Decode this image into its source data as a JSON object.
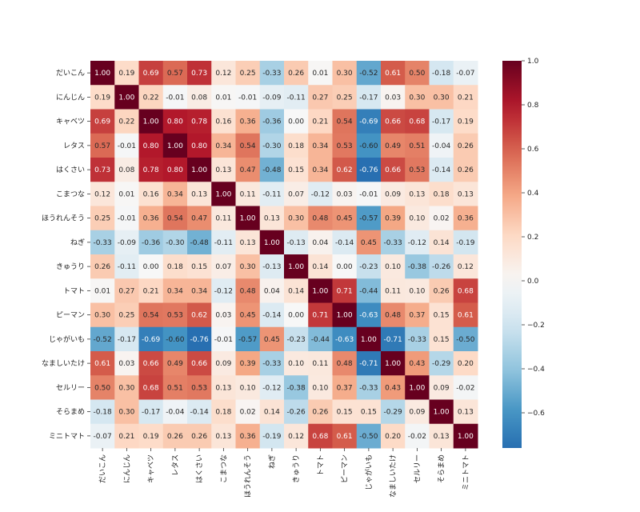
{
  "chart_data": {
    "type": "heatmap",
    "title": "",
    "xlabel": "",
    "ylabel": "",
    "labels": [
      "だいこん",
      "にんじん",
      "キャベツ",
      "レタス",
      "はくさい",
      "こまつな",
      "ほうれんそう",
      "ねぎ",
      "きゅうり",
      "トマト",
      "ピーマン",
      "じゃがいも",
      "なましいたけ",
      "セルリー",
      "そらまめ",
      "ミニトマト"
    ],
    "matrix": [
      [
        1.0,
        0.19,
        0.69,
        0.57,
        0.73,
        0.12,
        0.25,
        -0.33,
        0.26,
        0.01,
        0.3,
        -0.52,
        0.61,
        0.5,
        -0.18,
        -0.07
      ],
      [
        0.19,
        1.0,
        0.22,
        -0.01,
        0.08,
        0.01,
        -0.01,
        -0.09,
        -0.11,
        0.27,
        0.25,
        -0.17,
        0.03,
        0.3,
        0.3,
        0.21
      ],
      [
        0.69,
        0.22,
        1.0,
        0.8,
        0.78,
        0.16,
        0.36,
        -0.36,
        0.0,
        0.21,
        0.54,
        -0.69,
        0.66,
        0.68,
        -0.17,
        0.19
      ],
      [
        0.57,
        -0.01,
        0.8,
        1.0,
        0.8,
        0.34,
        0.54,
        -0.3,
        0.18,
        0.34,
        0.53,
        -0.6,
        0.49,
        0.51,
        -0.04,
        0.26
      ],
      [
        0.73,
        0.08,
        0.78,
        0.8,
        1.0,
        0.13,
        0.47,
        -0.48,
        0.15,
        0.34,
        0.62,
        -0.76,
        0.66,
        0.53,
        -0.14,
        0.26
      ],
      [
        0.12,
        0.01,
        0.16,
        0.34,
        0.13,
        1.0,
        0.11,
        -0.11,
        0.07,
        -0.12,
        0.03,
        -0.01,
        0.09,
        0.13,
        0.18,
        0.13
      ],
      [
        0.25,
        -0.01,
        0.36,
        0.54,
        0.47,
        0.11,
        1.0,
        0.13,
        0.3,
        0.48,
        0.45,
        -0.57,
        0.39,
        0.1,
        0.02,
        0.36
      ],
      [
        -0.33,
        -0.09,
        -0.36,
        -0.3,
        -0.48,
        -0.11,
        0.13,
        1.0,
        -0.13,
        0.04,
        -0.14,
        0.45,
        -0.33,
        -0.12,
        0.14,
        -0.19
      ],
      [
        0.26,
        -0.11,
        0.0,
        0.18,
        0.15,
        0.07,
        0.3,
        -0.13,
        1.0,
        0.14,
        0.0,
        -0.23,
        0.1,
        -0.38,
        -0.26,
        0.12
      ],
      [
        0.01,
        0.27,
        0.21,
        0.34,
        0.34,
        -0.12,
        0.48,
        0.04,
        0.14,
        1.0,
        0.71,
        -0.44,
        0.11,
        0.1,
        0.26,
        0.68
      ],
      [
        0.3,
        0.25,
        0.54,
        0.53,
        0.62,
        0.03,
        0.45,
        -0.14,
        0.0,
        0.71,
        1.0,
        -0.63,
        0.48,
        0.37,
        0.15,
        0.61
      ],
      [
        -0.52,
        -0.17,
        -0.69,
        -0.6,
        -0.76,
        -0.01,
        -0.57,
        0.45,
        -0.23,
        -0.44,
        -0.63,
        1.0,
        -0.71,
        -0.33,
        0.15,
        -0.5
      ],
      [
        0.61,
        0.03,
        0.66,
        0.49,
        0.66,
        0.09,
        0.39,
        -0.33,
        0.1,
        0.11,
        0.48,
        -0.71,
        1.0,
        0.43,
        -0.29,
        0.2
      ],
      [
        0.5,
        0.3,
        0.68,
        0.51,
        0.53,
        0.13,
        0.1,
        -0.12,
        -0.38,
        0.1,
        0.37,
        -0.33,
        0.43,
        1.0,
        0.09,
        -0.02
      ],
      [
        -0.18,
        0.3,
        -0.17,
        -0.04,
        -0.14,
        0.18,
        0.02,
        0.14,
        -0.26,
        0.26,
        0.15,
        0.15,
        -0.29,
        0.09,
        1.0,
        0.13
      ],
      [
        -0.07,
        0.21,
        0.19,
        0.26,
        0.26,
        0.13,
        0.36,
        -0.19,
        0.12,
        0.68,
        0.61,
        -0.5,
        0.2,
        -0.02,
        0.13,
        1.0
      ]
    ],
    "colorbar": {
      "range": [
        -0.76,
        1.0
      ],
      "ticks": [
        1.0,
        0.8,
        0.6,
        0.4,
        0.2,
        0.0,
        -0.2,
        -0.4,
        -0.6
      ],
      "tick_labels": [
        "1.0",
        "0.8",
        "0.6",
        "0.4",
        "0.2",
        "0.0",
        "−0.2",
        "−0.4",
        "−0.6"
      ]
    },
    "colormap": "RdBu_r",
    "annotations": "cell values shown with 2 decimals"
  }
}
